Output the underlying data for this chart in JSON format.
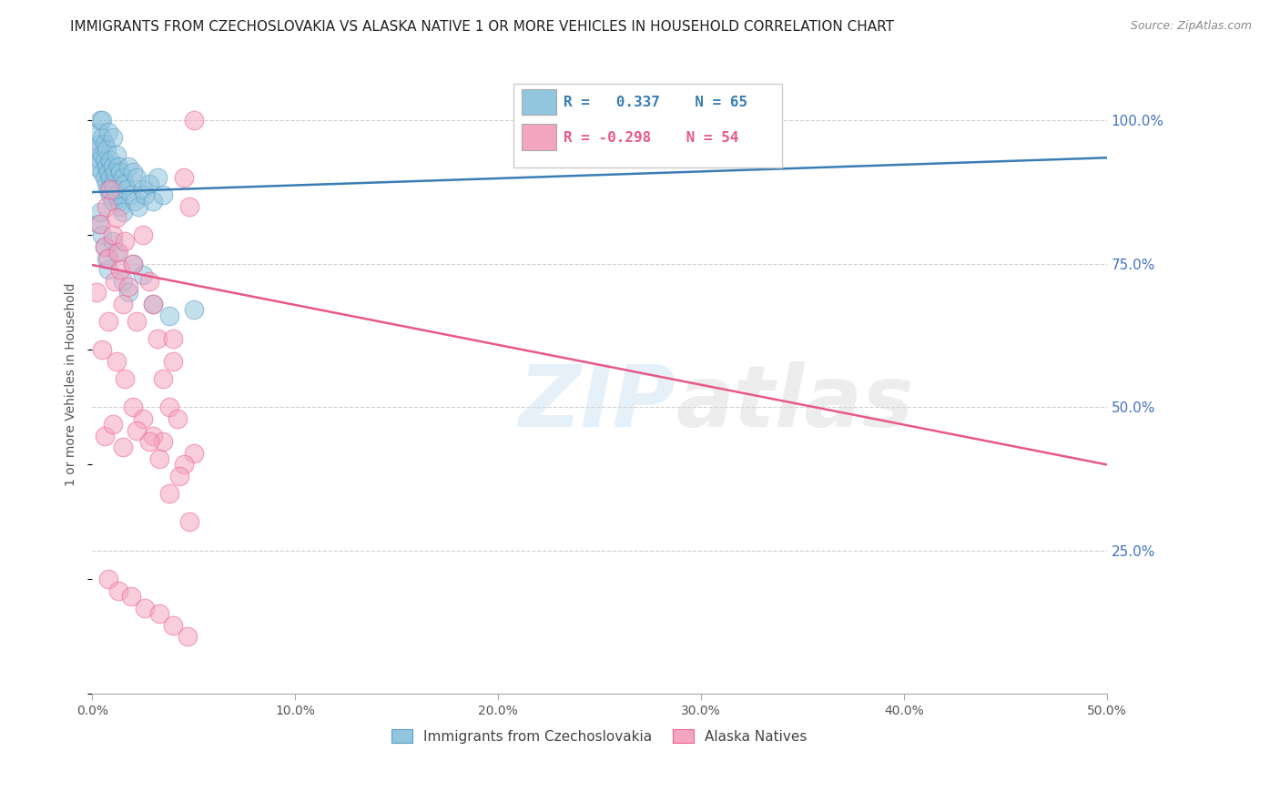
{
  "title": "IMMIGRANTS FROM CZECHOSLOVAKIA VS ALASKA NATIVE 1 OR MORE VEHICLES IN HOUSEHOLD CORRELATION CHART",
  "source": "Source: ZipAtlas.com",
  "ylabel": "1 or more Vehicles in Household",
  "xmin": 0.0,
  "xmax": 0.5,
  "ymin": 0.0,
  "ymax": 1.08,
  "xticks": [
    0.0,
    0.1,
    0.2,
    0.3,
    0.4,
    0.5
  ],
  "xtick_labels": [
    "0.0%",
    "10.0%",
    "20.0%",
    "30.0%",
    "40.0%",
    "50.0%"
  ],
  "ytick_positions": [
    0.25,
    0.5,
    0.75,
    1.0
  ],
  "ytick_labels": [
    "25.0%",
    "50.0%",
    "75.0%",
    "100.0%"
  ],
  "blue_R": 0.337,
  "blue_N": 65,
  "pink_R": -0.298,
  "pink_N": 54,
  "blue_color": "#92c5de",
  "pink_color": "#f4a5c0",
  "blue_edge_color": "#5b9ec9",
  "pink_edge_color": "#f06090",
  "blue_line_color": "#3a7db5",
  "pink_line_color": "#e8588a",
  "legend_blue_label": "Immigrants from Czechoslovakia",
  "legend_pink_label": "Alaska Natives",
  "watermark_zip": "ZIP",
  "watermark_atlas": "atlas",
  "background_color": "#ffffff",
  "grid_color": "#d0d0d0",
  "right_label_color": "#4472c4",
  "blue_trend_x0": 0.0,
  "blue_trend_y0": 0.875,
  "blue_trend_x1": 0.5,
  "blue_trend_y1": 0.935,
  "pink_trend_x0": 0.0,
  "pink_trend_y0": 0.748,
  "pink_trend_x1": 0.5,
  "pink_trend_y1": 0.4,
  "blue_scatter_x": [
    0.002,
    0.003,
    0.003,
    0.004,
    0.004,
    0.004,
    0.005,
    0.005,
    0.005,
    0.005,
    0.006,
    0.006,
    0.006,
    0.007,
    0.007,
    0.007,
    0.008,
    0.008,
    0.008,
    0.009,
    0.009,
    0.009,
    0.01,
    0.01,
    0.01,
    0.01,
    0.011,
    0.011,
    0.012,
    0.012,
    0.013,
    0.013,
    0.014,
    0.014,
    0.015,
    0.015,
    0.016,
    0.017,
    0.018,
    0.019,
    0.02,
    0.021,
    0.022,
    0.023,
    0.025,
    0.026,
    0.028,
    0.03,
    0.032,
    0.035,
    0.003,
    0.004,
    0.005,
    0.006,
    0.007,
    0.008,
    0.01,
    0.012,
    0.015,
    0.018,
    0.02,
    0.025,
    0.03,
    0.038,
    0.05
  ],
  "blue_scatter_y": [
    0.92,
    0.95,
    0.98,
    0.93,
    0.96,
    1.0,
    0.91,
    0.94,
    0.97,
    1.0,
    0.9,
    0.93,
    0.96,
    0.89,
    0.92,
    0.95,
    0.88,
    0.91,
    0.98,
    0.87,
    0.9,
    0.93,
    0.86,
    0.89,
    0.92,
    0.97,
    0.88,
    0.91,
    0.87,
    0.94,
    0.86,
    0.92,
    0.85,
    0.91,
    0.84,
    0.9,
    0.89,
    0.88,
    0.92,
    0.87,
    0.91,
    0.86,
    0.9,
    0.85,
    0.88,
    0.87,
    0.89,
    0.86,
    0.9,
    0.87,
    0.82,
    0.84,
    0.8,
    0.78,
    0.76,
    0.74,
    0.79,
    0.77,
    0.72,
    0.7,
    0.75,
    0.73,
    0.68,
    0.66,
    0.67
  ],
  "pink_scatter_x": [
    0.002,
    0.004,
    0.006,
    0.007,
    0.008,
    0.009,
    0.01,
    0.011,
    0.012,
    0.013,
    0.014,
    0.015,
    0.016,
    0.018,
    0.02,
    0.022,
    0.025,
    0.028,
    0.03,
    0.032,
    0.035,
    0.038,
    0.04,
    0.042,
    0.045,
    0.048,
    0.05,
    0.005,
    0.008,
    0.012,
    0.016,
    0.02,
    0.025,
    0.03,
    0.035,
    0.04,
    0.045,
    0.006,
    0.01,
    0.015,
    0.022,
    0.028,
    0.033,
    0.038,
    0.043,
    0.048,
    0.008,
    0.013,
    0.019,
    0.026,
    0.033,
    0.04,
    0.047,
    0.05
  ],
  "pink_scatter_y": [
    0.7,
    0.82,
    0.78,
    0.85,
    0.76,
    0.88,
    0.8,
    0.72,
    0.83,
    0.77,
    0.74,
    0.68,
    0.79,
    0.71,
    0.75,
    0.65,
    0.8,
    0.72,
    0.68,
    0.62,
    0.55,
    0.5,
    0.58,
    0.48,
    0.9,
    0.85,
    0.42,
    0.6,
    0.65,
    0.58,
    0.55,
    0.5,
    0.48,
    0.45,
    0.44,
    0.62,
    0.4,
    0.45,
    0.47,
    0.43,
    0.46,
    0.44,
    0.41,
    0.35,
    0.38,
    0.3,
    0.2,
    0.18,
    0.17,
    0.15,
    0.14,
    0.12,
    0.1,
    1.0
  ]
}
